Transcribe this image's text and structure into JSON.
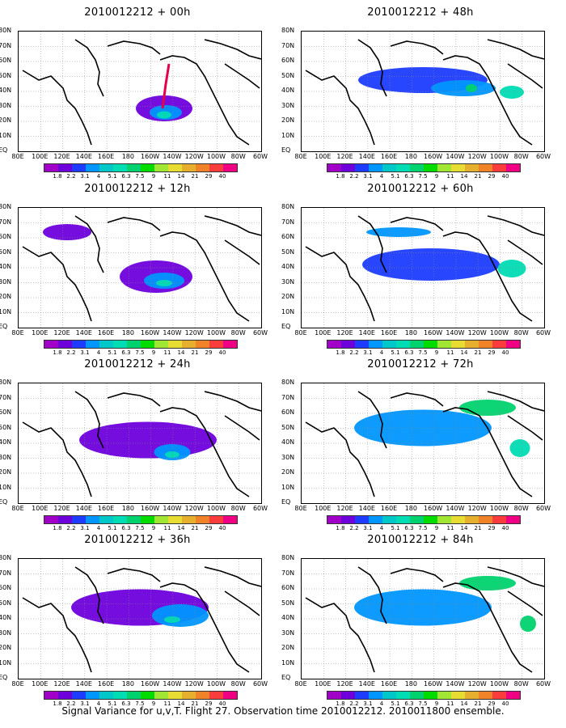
{
  "panels": [
    {
      "title": "2010012212 + 00h"
    },
    {
      "title": "2010012212 + 48h"
    },
    {
      "title": "2010012212 + 12h"
    },
    {
      "title": "2010012212 + 60h"
    },
    {
      "title": "2010012212 + 24h"
    },
    {
      "title": "2010012212 + 72h"
    },
    {
      "title": "2010012212 + 36h"
    },
    {
      "title": "2010012212 + 84h"
    }
  ],
  "lat_labels": [
    "80N",
    "70N",
    "60N",
    "50N",
    "40N",
    "30N",
    "20N",
    "10N",
    "EQ"
  ],
  "lon_labels": [
    "80E",
    "100E",
    "120E",
    "140E",
    "160E",
    "180",
    "160W",
    "140W",
    "120W",
    "100W",
    "80W",
    "60W"
  ],
  "colorbar": {
    "labels": [
      "1.8",
      "2.2",
      "3.1",
      "4",
      "5.1",
      "6.3",
      "7.5",
      "9",
      "11",
      "14",
      "21",
      "29",
      "40"
    ],
    "colors": [
      "#a000c8",
      "#6e00dc",
      "#1e3cff",
      "#0096ff",
      "#00c8c8",
      "#00dcb4",
      "#00d26e",
      "#00dc00",
      "#a0e632",
      "#e6dc32",
      "#e6af2d",
      "#f08228",
      "#fa3c3c",
      "#f00082"
    ]
  },
  "footer": "Signal Variance for u,v,T. Flight 27. Observation time 2010012212. 2010011800 ensemble."
}
